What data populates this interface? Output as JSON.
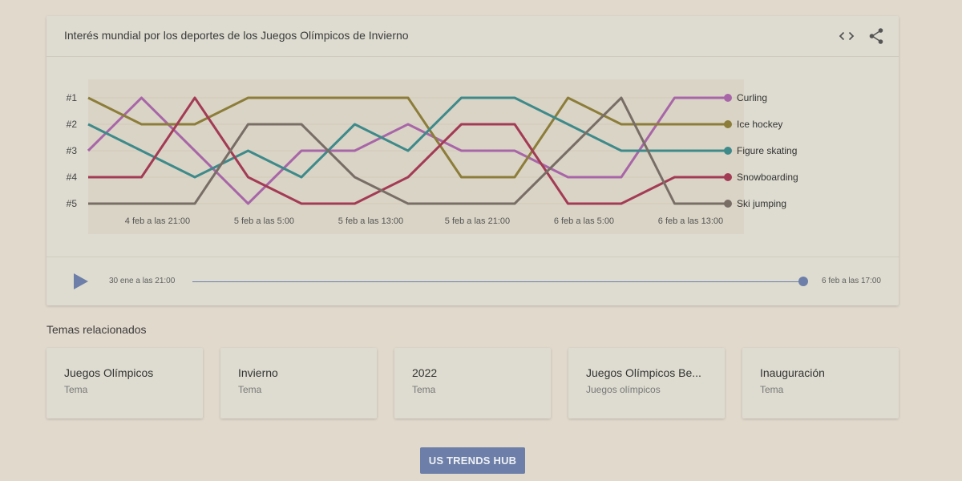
{
  "header": {
    "title": "Interés mundial por los deportes de los Juegos Olímpicos de Invierno",
    "embed_icon": "code-embed-icon",
    "share_icon": "share-icon"
  },
  "chart_data": {
    "type": "line",
    "subtype": "bump-rank",
    "y_tick_labels": [
      "#1",
      "#2",
      "#3",
      "#4",
      "#5"
    ],
    "x_tick_labels": [
      "4 feb a las 21:00",
      "5 feb a las 5:00",
      "5 feb a las 13:00",
      "5 feb a las 21:00",
      "6 feb a las 5:00",
      "6 feb a las 13:00"
    ],
    "x_tick_positions": [
      1.3,
      3.3,
      5.3,
      7.3,
      9.3,
      11.3
    ],
    "x": [
      0,
      1,
      2,
      3,
      4,
      5,
      6,
      7,
      8,
      9,
      10,
      11,
      12
    ],
    "grid": true,
    "legend_placement": "right-end-labels",
    "series": [
      {
        "name": "Curling",
        "color": "#a866a8",
        "ranks": [
          3,
          1,
          3,
          5,
          3,
          3,
          2,
          3,
          3,
          4,
          4,
          1,
          1
        ]
      },
      {
        "name": "Ice hockey",
        "color": "#8c7d3a",
        "ranks": [
          1,
          2,
          2,
          1,
          1,
          1,
          1,
          4,
          4,
          1,
          2,
          2,
          2
        ]
      },
      {
        "name": "Figure skating",
        "color": "#3e8a8a",
        "ranks": [
          2,
          3,
          4,
          3,
          4,
          2,
          3,
          1,
          1,
          2,
          3,
          3,
          3
        ]
      },
      {
        "name": "Snowboarding",
        "color": "#a33b55",
        "ranks": [
          4,
          4,
          1,
          4,
          5,
          5,
          4,
          2,
          2,
          5,
          5,
          4,
          4
        ]
      },
      {
        "name": "Ski jumping",
        "color": "#786e66",
        "ranks": [
          5,
          5,
          5,
          2,
          2,
          4,
          5,
          5,
          5,
          3,
          1,
          5,
          5
        ]
      }
    ]
  },
  "timeline": {
    "start_label": "30 ene a las 21:00",
    "end_label": "6 feb a las 17:00",
    "position": 1.0
  },
  "related": {
    "title": "Temas relacionados",
    "items": [
      {
        "name": "Juegos Olímpicos",
        "type": "Tema"
      },
      {
        "name": "Invierno",
        "type": "Tema"
      },
      {
        "name": "2022",
        "type": "Tema"
      },
      {
        "name": "Juegos Olímpicos Be...",
        "type": "Juegos olímpicos"
      },
      {
        "name": "Inauguración",
        "type": "Tema"
      }
    ]
  },
  "hub_button": {
    "label": "US TRENDS HUB"
  },
  "colors": {
    "background": "#e2d9cd",
    "card": "#dedcd0",
    "accent": "#6d7fa8"
  }
}
